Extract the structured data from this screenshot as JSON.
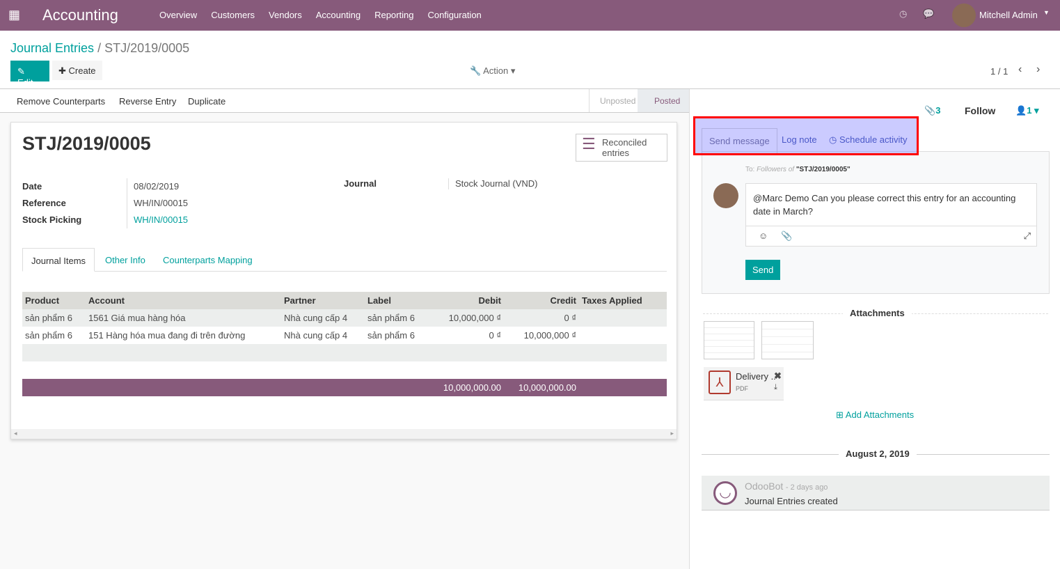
{
  "navbar": {
    "app_title": "Accounting",
    "menu": [
      "Overview",
      "Customers",
      "Vendors",
      "Accounting",
      "Reporting",
      "Configuration"
    ],
    "user": "Mitchell Admin",
    "brand_color": "#875a7b"
  },
  "breadcrumb": {
    "parent": "Journal Entries",
    "current": "STJ/2019/0005"
  },
  "buttons": {
    "edit": "Edit",
    "create": "Create",
    "action": "Action",
    "pager": "1 / 1"
  },
  "statusbar": {
    "actions": [
      "Remove Counterparts",
      "Reverse Entry",
      "Duplicate"
    ],
    "states": [
      "Unposted",
      "Posted"
    ],
    "active_state": "Posted"
  },
  "form": {
    "title": "STJ/2019/0005",
    "smart_button": "Reconciled entries",
    "fields": [
      {
        "label": "Date",
        "value": "08/02/2019"
      },
      {
        "label": "Reference",
        "value": "WH/IN/00015"
      },
      {
        "label": "Stock Picking",
        "value": "WH/IN/00015"
      }
    ],
    "journal_label": "Journal",
    "journal_value": "Stock Journal (VND)",
    "tabs": [
      "Journal Items",
      "Other Info",
      "Counterparts Mapping"
    ],
    "table": {
      "headers": [
        "Product",
        "Account",
        "Partner",
        "Label",
        "Debit",
        "Credit",
        "Taxes Applied"
      ],
      "rows": [
        [
          "sản phẩm 6",
          "1561 Giá mua hàng hóa",
          "Nhà cung cấp 4",
          "sản phẩm 6",
          "10,000,000 ₫",
          "0 ₫",
          ""
        ],
        [
          "sản phẩm 6",
          "151 Hàng hóa mua đang đi trên đường",
          "Nhà cung cấp 4",
          "sản phẩm 6",
          "0 ₫",
          "10,000,000 ₫",
          ""
        ]
      ],
      "total_debit": "10,000,000.00",
      "total_credit": "10,000,000.00"
    }
  },
  "chatter": {
    "attachments_count": "3",
    "follow": "Follow",
    "followers_count": "1",
    "tabs": [
      "Send message",
      "Log note",
      "Schedule activity"
    ],
    "to_prefix": "To:",
    "to_followers": "Followers of",
    "to_record": "\"STJ/2019/0005\"",
    "message": "@Marc Demo Can you please correct this entry for an accounting date in March?",
    "send": "Send",
    "attachments_title": "Attachments",
    "attachment_name": "Delivery ..",
    "attachment_type": "PDF",
    "add_attachments": "Add Attachments",
    "date_separator": "August 2, 2019",
    "log": {
      "author": "OdooBot",
      "time": "- 2 days ago",
      "body": "Journal Entries created"
    }
  }
}
